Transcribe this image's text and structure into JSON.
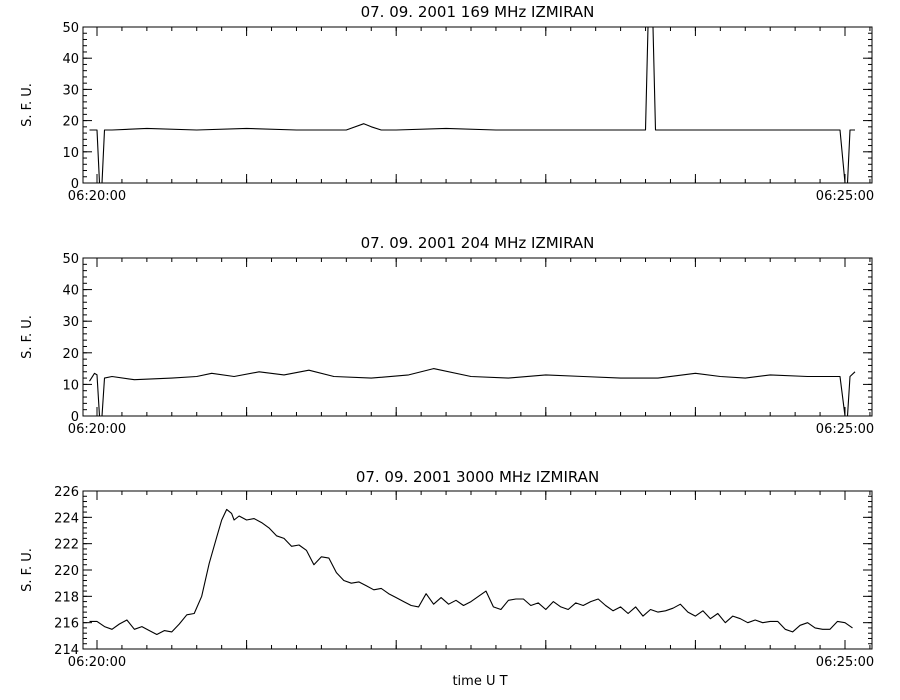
{
  "chart_data": [
    {
      "type": "line",
      "title": "07. 09. 2001   169 MHz   IZMIRAN",
      "ylabel": "S. F. U.",
      "ylim": [
        0,
        50
      ],
      "yticks": [
        "0",
        "10",
        "20",
        "30",
        "40",
        "50"
      ],
      "xlim": [
        "06:20:00",
        "06:25:00"
      ],
      "xtick_labels": [
        "06:20:00",
        "06:25:00"
      ],
      "series": [
        {
          "x": [
            "06:19:57",
            "06:20:00",
            "06:20:01",
            "06:20:02",
            "06:20:03",
            "06:20:06",
            "06:20:20",
            "06:20:40",
            "06:21:00",
            "06:21:20",
            "06:21:40",
            "06:21:47",
            "06:21:50",
            "06:21:54",
            "06:22:00",
            "06:22:20",
            "06:22:40",
            "06:23:00",
            "06:23:20",
            "06:23:40",
            "06:23:41",
            "06:23:42",
            "06:23:43",
            "06:23:44",
            "06:23:45",
            "06:23:47",
            "06:24:00",
            "06:24:20",
            "06:24:40",
            "06:24:58",
            "06:25:00",
            "06:25:01",
            "06:25:02",
            "06:25:04"
          ],
          "y": [
            17,
            17,
            0,
            0,
            17,
            17,
            17.5,
            17,
            17.5,
            17,
            17,
            19,
            18,
            17,
            17,
            17.5,
            17,
            17,
            17,
            17,
            50,
            50,
            50,
            17,
            17,
            17,
            17,
            17,
            17,
            17,
            0,
            0,
            17,
            17
          ]
        }
      ]
    },
    {
      "type": "line",
      "title": "07. 09. 2001   204 MHz   IZMIRAN",
      "ylabel": "S. F. U.",
      "ylim": [
        0,
        50
      ],
      "yticks": [
        "0",
        "10",
        "20",
        "30",
        "40",
        "50"
      ],
      "xlim": [
        "06:20:00",
        "06:25:00"
      ],
      "xtick_labels": [
        "06:20:00",
        "06:25:00"
      ],
      "series": [
        {
          "x": [
            "06:19:57",
            "06:19:59",
            "06:20:00",
            "06:20:01",
            "06:20:02",
            "06:20:03",
            "06:20:06",
            "06:20:15",
            "06:20:30",
            "06:20:40",
            "06:20:46",
            "06:20:55",
            "06:21:05",
            "06:21:15",
            "06:21:25",
            "06:21:35",
            "06:21:50",
            "06:22:05",
            "06:22:15",
            "06:22:30",
            "06:22:45",
            "06:23:00",
            "06:23:15",
            "06:23:30",
            "06:23:45",
            "06:24:00",
            "06:24:10",
            "06:24:20",
            "06:24:30",
            "06:24:45",
            "06:24:58",
            "06:25:00",
            "06:25:01",
            "06:25:02",
            "06:25:04"
          ],
          "y": [
            11,
            13.5,
            13,
            0,
            0,
            12,
            12.5,
            11.5,
            12,
            12.5,
            13.5,
            12.5,
            14,
            13,
            14.5,
            12.5,
            12,
            13,
            15,
            12.5,
            12,
            13,
            12.5,
            12,
            12,
            13.5,
            12.5,
            12,
            13,
            12.5,
            12.5,
            0,
            0,
            12.5,
            14
          ]
        }
      ]
    },
    {
      "type": "line",
      "title": "07. 09. 2001   3000 MHz   IZMIRAN",
      "ylabel": "S. F. U.",
      "ylim": [
        214,
        226
      ],
      "yticks": [
        "214",
        "216",
        "218",
        "220",
        "222",
        "224",
        "226"
      ],
      "xlim": [
        "06:20:00",
        "06:25:00"
      ],
      "xtick_labels": [
        "06:20:00",
        "06:25:00"
      ],
      "xlabel": "time   U T",
      "series": [
        {
          "x": [
            "06:19:57",
            "06:20:00",
            "06:20:03",
            "06:20:06",
            "06:20:09",
            "06:20:12",
            "06:20:15",
            "06:20:18",
            "06:20:21",
            "06:20:24",
            "06:20:27",
            "06:20:30",
            "06:20:33",
            "06:20:36",
            "06:20:39",
            "06:20:42",
            "06:20:45",
            "06:20:48",
            "06:20:50",
            "06:20:52",
            "06:20:54",
            "06:20:55",
            "06:20:57",
            "06:21:00",
            "06:21:03",
            "06:21:06",
            "06:21:09",
            "06:21:12",
            "06:21:15",
            "06:21:18",
            "06:21:21",
            "06:21:24",
            "06:21:27",
            "06:21:30",
            "06:21:33",
            "06:21:36",
            "06:21:39",
            "06:21:42",
            "06:21:45",
            "06:21:48",
            "06:21:51",
            "06:21:54",
            "06:21:57",
            "06:22:00",
            "06:22:03",
            "06:22:06",
            "06:22:09",
            "06:22:12",
            "06:22:15",
            "06:22:18",
            "06:22:21",
            "06:22:24",
            "06:22:27",
            "06:22:30",
            "06:22:33",
            "06:22:36",
            "06:22:39",
            "06:22:42",
            "06:22:45",
            "06:22:48",
            "06:22:51",
            "06:22:54",
            "06:22:57",
            "06:23:00",
            "06:23:03",
            "06:23:06",
            "06:23:09",
            "06:23:12",
            "06:23:15",
            "06:23:18",
            "06:23:21",
            "06:23:24",
            "06:23:27",
            "06:23:30",
            "06:23:33",
            "06:23:36",
            "06:23:39",
            "06:23:42",
            "06:23:45",
            "06:23:48",
            "06:23:51",
            "06:23:54",
            "06:23:57",
            "06:24:00",
            "06:24:03",
            "06:24:06",
            "06:24:09",
            "06:24:12",
            "06:24:15",
            "06:24:18",
            "06:24:21",
            "06:24:24",
            "06:24:27",
            "06:24:30",
            "06:24:33",
            "06:24:36",
            "06:24:39",
            "06:24:42",
            "06:24:45",
            "06:24:48",
            "06:24:51",
            "06:24:54",
            "06:24:57",
            "06:25:00",
            "06:25:03"
          ],
          "y": [
            216.1,
            216.1,
            215.7,
            215.5,
            215.9,
            216.2,
            215.5,
            215.7,
            215.4,
            215.1,
            215.4,
            215.3,
            215.9,
            216.6,
            216.7,
            218.0,
            220.5,
            222.5,
            223.8,
            224.6,
            224.3,
            223.8,
            224.1,
            223.8,
            223.9,
            223.6,
            223.2,
            222.6,
            222.4,
            221.8,
            221.9,
            221.5,
            220.4,
            221.0,
            220.9,
            219.8,
            219.2,
            219.0,
            219.1,
            218.8,
            218.5,
            218.6,
            218.2,
            217.9,
            217.6,
            217.3,
            217.2,
            218.2,
            217.4,
            217.9,
            217.4,
            217.7,
            217.3,
            217.6,
            218.0,
            218.4,
            217.2,
            217.0,
            217.7,
            217.8,
            217.8,
            217.3,
            217.5,
            217.0,
            217.6,
            217.2,
            217.0,
            217.5,
            217.3,
            217.6,
            217.8,
            217.3,
            216.9,
            217.2,
            216.7,
            217.2,
            216.5,
            217.0,
            216.8,
            216.9,
            217.1,
            217.4,
            216.8,
            216.5,
            216.9,
            216.3,
            216.7,
            216.0,
            216.5,
            216.3,
            216.0,
            216.2,
            216.0,
            216.1,
            216.1,
            215.5,
            215.3,
            215.8,
            216.0,
            215.6,
            215.5,
            215.5,
            216.1,
            216.0,
            215.6
          ]
        }
      ]
    }
  ]
}
